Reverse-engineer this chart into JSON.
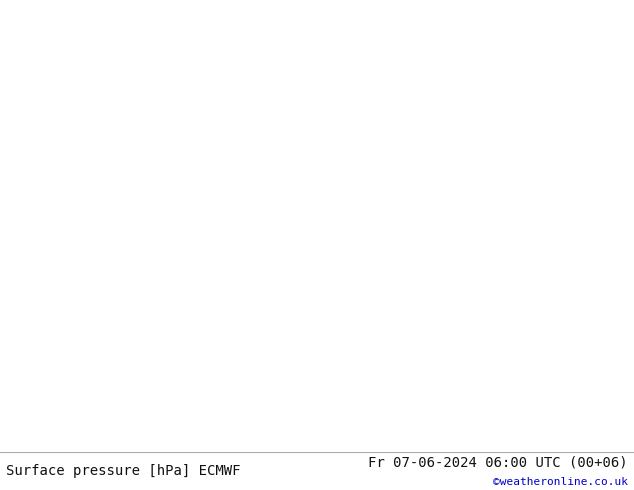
{
  "title_left": "Surface pressure [hPa] ECMWF",
  "title_right": "Fr 07-06-2024 06:00 UTC (00+06)",
  "credit": "©weatheronline.co.uk",
  "bg_land_color": "#b4d89a",
  "bg_sea_color": "#c8cec8",
  "coastline_color": "#888888",
  "isobar_color_blue": "#0000dd",
  "isobar_color_red": "#dd0000",
  "isobar_color_black": "#000000",
  "text_color_black": "#111111",
  "text_color_blue": "#0000dd",
  "text_color_red": "#dd0000",
  "text_color_credit": "#0000cc",
  "font_size_label": 8,
  "font_size_title": 10,
  "font_size_credit": 8,
  "figsize": [
    6.34,
    4.9
  ],
  "dpi": 100,
  "bottom_bar_height": 38,
  "map_lon_min": -12,
  "map_lon_max": 30,
  "map_lat_min": 44,
  "map_lat_max": 62
}
